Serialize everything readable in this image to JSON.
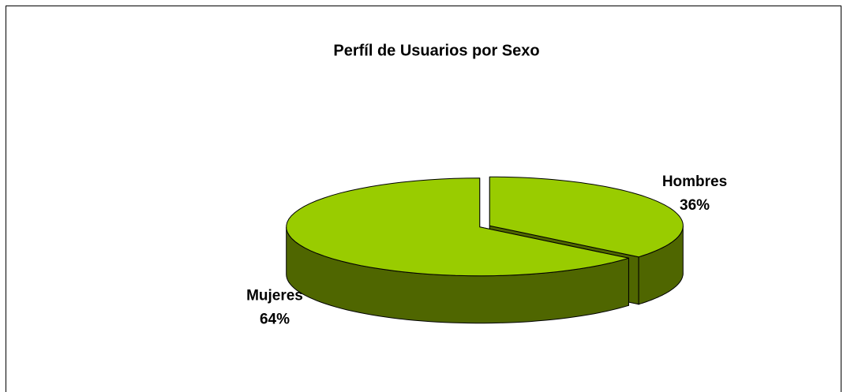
{
  "chart_data": {
    "type": "pie",
    "title": "Perfíl de Usuarios por Sexo",
    "categories": [
      "Hombres",
      "Mujeres"
    ],
    "values": [
      36,
      64
    ],
    "value_labels": [
      "36%",
      "64%"
    ],
    "color": "#99cc00"
  }
}
